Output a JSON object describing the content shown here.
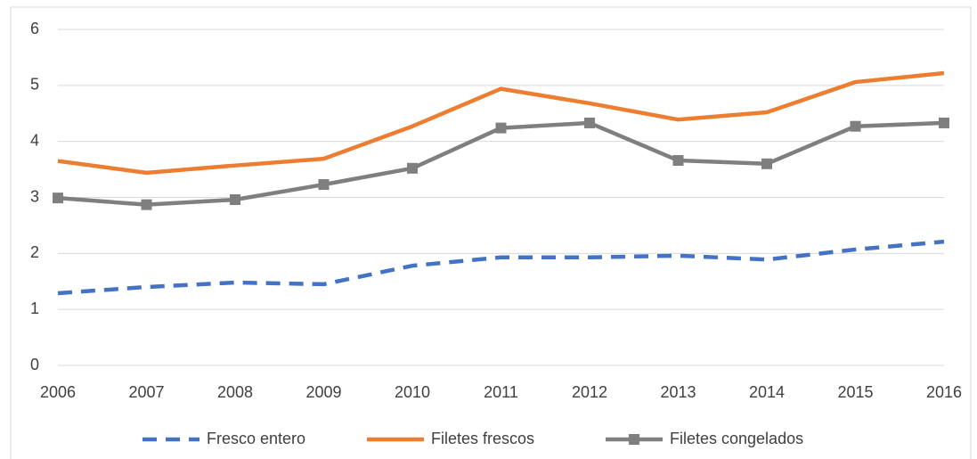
{
  "chart_data": {
    "type": "line",
    "x": [
      2006,
      2007,
      2008,
      2009,
      2010,
      2011,
      2012,
      2013,
      2014,
      2015,
      2016
    ],
    "xlim": [
      2006,
      2016
    ],
    "xticks": [
      2006,
      2007,
      2008,
      2009,
      2010,
      2011,
      2012,
      2013,
      2014,
      2015,
      2016
    ],
    "ylim": [
      0,
      6
    ],
    "yticks": [
      0,
      1,
      2,
      3,
      4,
      5,
      6
    ],
    "grid": true,
    "legend": "bottom",
    "series": [
      {
        "name": "Fresco entero",
        "color": "#4472c4",
        "dash": "dashed",
        "values": [
          1.29,
          1.4,
          1.48,
          1.45,
          1.78,
          1.93,
          1.93,
          1.96,
          1.89,
          2.07,
          2.21
        ]
      },
      {
        "name": "Filetes frescos",
        "color": "#ed7d31",
        "dash": "solid",
        "values": [
          3.65,
          3.44,
          3.57,
          3.69,
          4.27,
          4.94,
          4.68,
          4.39,
          4.52,
          5.06,
          5.22
        ]
      },
      {
        "name": "Filetes congelados",
        "color": "#7f7f7f",
        "dash": "solid",
        "marker": "square",
        "values": [
          2.99,
          2.87,
          2.96,
          3.23,
          3.52,
          4.24,
          4.33,
          3.66,
          3.6,
          4.27,
          4.33
        ]
      }
    ]
  }
}
